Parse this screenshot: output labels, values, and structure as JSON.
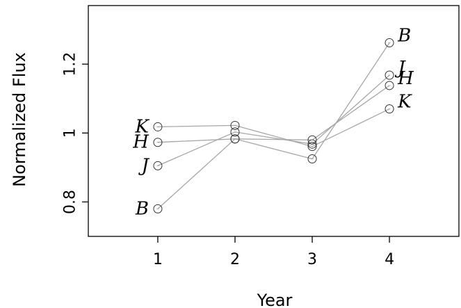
{
  "chart_data": {
    "type": "line",
    "title": "",
    "xlabel": "Year",
    "ylabel": "Normalized Flux",
    "xlim": [
      0.1,
      4.9
    ],
    "ylim": [
      0.7,
      1.37
    ],
    "x": [
      1,
      2,
      3,
      4
    ],
    "xticks": [
      1,
      2,
      3,
      4
    ],
    "xtick_labels": [
      "1",
      "2",
      "3",
      "4"
    ],
    "yticks": [
      0.8,
      1.0,
      1.2
    ],
    "ytick_labels": [
      "0.8",
      "1",
      "1.2"
    ],
    "grid": false,
    "legend": "none",
    "colors": {
      "line": "#a6a6a6",
      "marker": "#333333",
      "frame": "#000000"
    },
    "series": [
      {
        "name": "B",
        "values": [
          0.78,
          0.983,
          0.925,
          1.262
        ]
      },
      {
        "name": "J",
        "values": [
          0.905,
          1.003,
          0.968,
          1.168
        ]
      },
      {
        "name": "H",
        "values": [
          0.973,
          0.983,
          0.98,
          1.138
        ]
      },
      {
        "name": "K",
        "values": [
          1.018,
          1.022,
          0.961,
          1.07
        ]
      }
    ]
  }
}
